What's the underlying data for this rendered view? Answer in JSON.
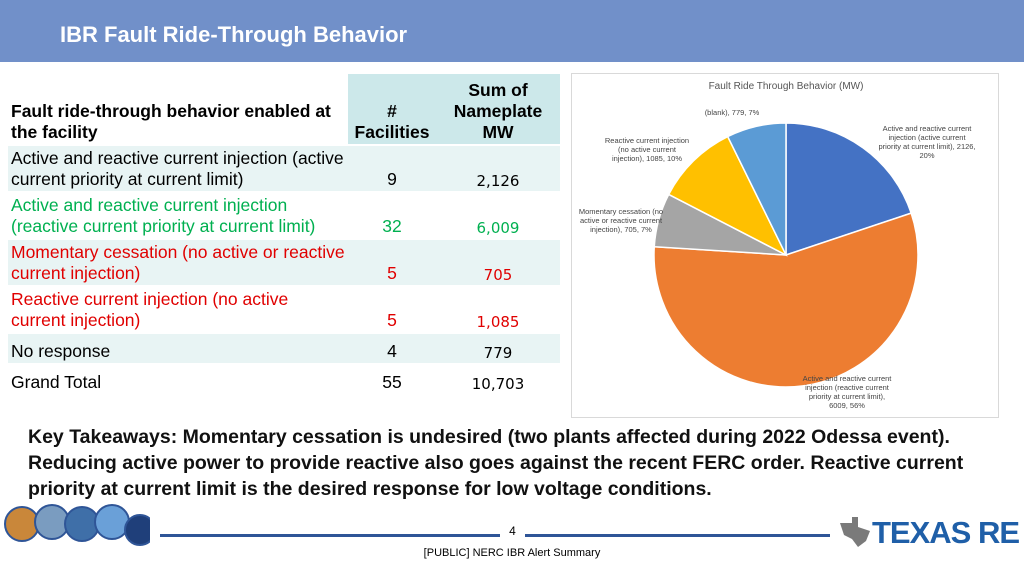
{
  "header": {
    "title": "IBR Fault Ride-Through Behavior"
  },
  "table": {
    "columns": [
      "Fault ride-through behavior enabled at the facility",
      "# Facilities",
      "Sum of Nameplate MW"
    ],
    "rows": [
      [
        "Active and reactive current injection (active current priority at current limit)",
        "9",
        "2,126"
      ],
      [
        "Active and reactive current injection (reactive current priority at current limit)",
        "32",
        "6,009"
      ],
      [
        "Momentary cessation (no active or reactive current injection)",
        "5",
        "705"
      ],
      [
        "Reactive current injection (no active current injection)",
        "5",
        "1,085"
      ],
      [
        "No response",
        "4",
        "779"
      ],
      [
        "Grand Total",
        "55",
        "10,703"
      ]
    ],
    "row_colors": [
      "#000000",
      "#00b050",
      "#e00000",
      "#e00000",
      "#000000",
      "#000000"
    ]
  },
  "chart_data": {
    "type": "pie",
    "title": "Fault Ride Through Behavior (MW)",
    "values": [
      2126,
      6009,
      705,
      1085,
      779
    ],
    "labels": [
      "Active and reactive current injection (active current priority at current limit), 2126, 20%",
      "Active and reactive current injection (reactive current priority at current limit), 6009, 56%",
      "Momentary cessation (no active or reactive current injection), 705, 7%",
      "Reactive current injection (no active current injection), 1085, 10%",
      "(blank), 779, 7%"
    ],
    "colors": [
      "#4472c4",
      "#ed7d31",
      "#a5a5a5",
      "#ffc000",
      "#5b9bd5"
    ]
  },
  "takeaways": "Key Takeaways: Momentary cessation is undesired (two plants affected during 2022 Odessa event).  Reducing active power to provide reactive also goes against the recent FERC order. Reactive current priority at current limit is the desired response for low voltage conditions.",
  "footer": {
    "page": "4",
    "note": "[PUBLIC] NERC IBR Alert Summary",
    "logo": "TEXAS RE"
  }
}
